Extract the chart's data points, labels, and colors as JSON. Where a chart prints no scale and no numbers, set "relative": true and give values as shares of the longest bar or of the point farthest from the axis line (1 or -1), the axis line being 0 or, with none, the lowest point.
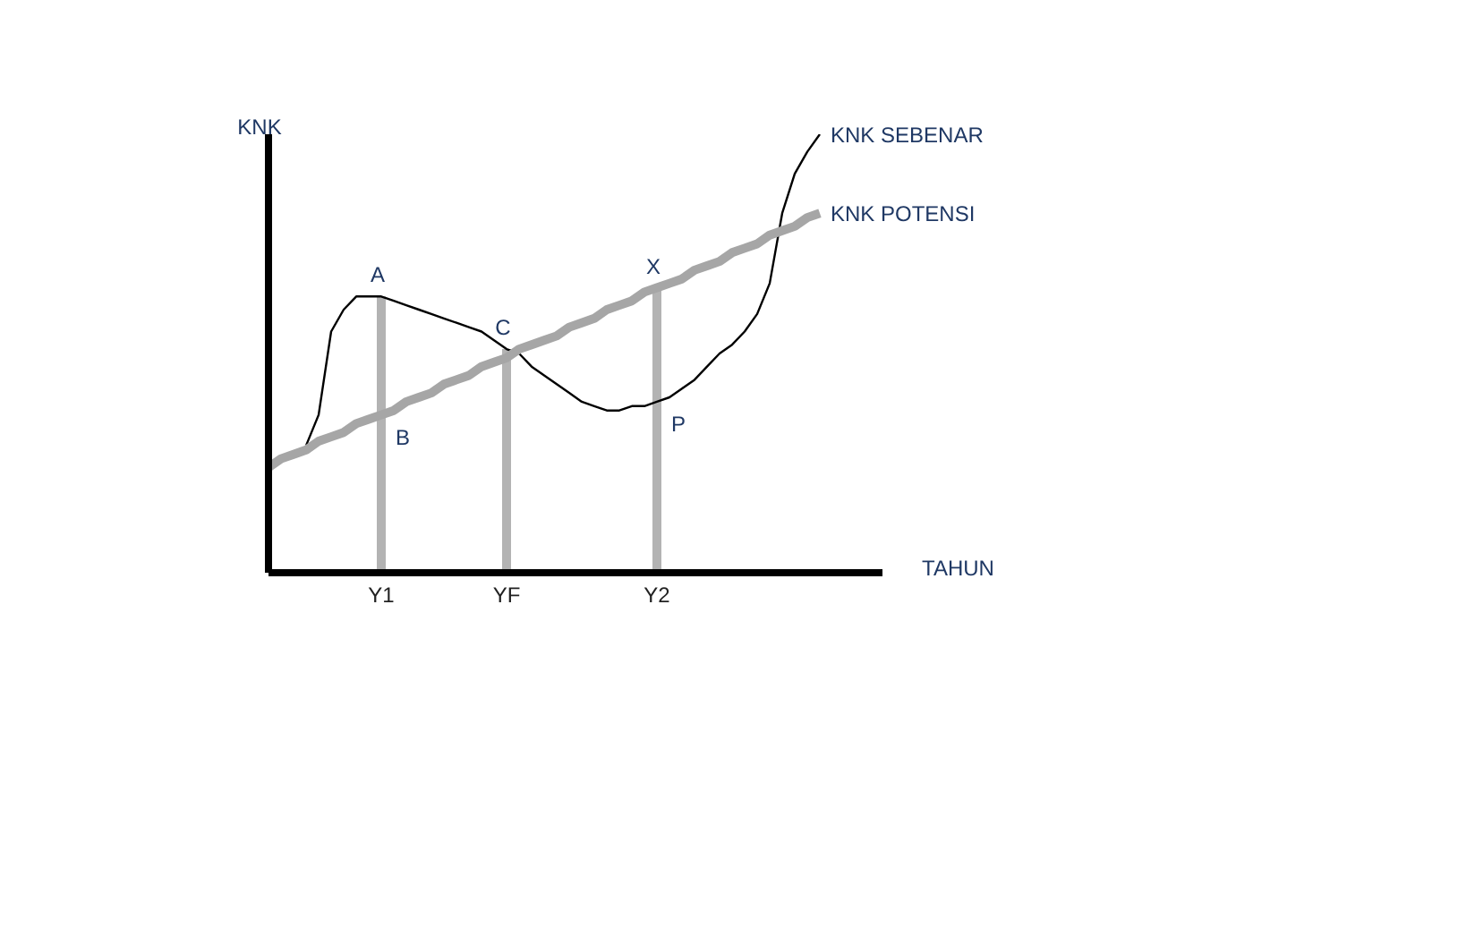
{
  "chart_data": {
    "type": "line",
    "relative": true,
    "xlabel": "TAHUN",
    "ylabel": "KNK",
    "categories": [
      null,
      null,
      null,
      null,
      null,
      null,
      null,
      null,
      null,
      "Y1",
      null,
      null,
      null,
      null,
      null,
      null,
      null,
      null,
      null,
      "YF",
      null,
      null,
      null,
      null,
      null,
      null,
      null,
      null,
      null,
      null,
      null,
      "Y2",
      null,
      null,
      null,
      null,
      null,
      null,
      null,
      null,
      null,
      null,
      null,
      null,
      null
    ],
    "series": [
      {
        "name": "KNK SEBENAR",
        "color": "#000000",
        "values": [
          null,
          null,
          null,
          0.29,
          0.36,
          0.55,
          0.6,
          0.63,
          0.63,
          0.63,
          0.62,
          0.61,
          0.6,
          0.59,
          0.58,
          0.57,
          0.56,
          0.55,
          0.53,
          0.51,
          0.5,
          0.47,
          0.45,
          0.43,
          0.41,
          0.39,
          0.38,
          0.37,
          0.37,
          0.38,
          0.38,
          0.39,
          0.4,
          0.42,
          0.44,
          0.47,
          0.5,
          0.52,
          0.55,
          0.59,
          0.66,
          0.82,
          0.91,
          0.96,
          1
        ]
      },
      {
        "name": "KNK POTENSI",
        "color": "#a6a6a6",
        "values": [
          0.24,
          0.26,
          0.27,
          0.28,
          0.3,
          0.31,
          0.32,
          0.34,
          0.35,
          0.36,
          0.37,
          0.39,
          0.4,
          0.41,
          0.43,
          0.44,
          0.45,
          0.47,
          0.48,
          0.49,
          0.51,
          0.52,
          0.53,
          0.54,
          0.56,
          0.57,
          0.58,
          0.6,
          0.61,
          0.62,
          0.64,
          0.65,
          0.66,
          0.67,
          0.69,
          0.7,
          0.71,
          0.73,
          0.74,
          0.75,
          0.77,
          0.78,
          0.79,
          0.81,
          0.82
        ]
      }
    ],
    "annotations": [
      {
        "text": "A",
        "x": "Y1",
        "y": 0.63
      },
      {
        "text": "B",
        "x": "Y1",
        "y": 0.36
      },
      {
        "text": "C",
        "x": "YF",
        "y": 0.51
      },
      {
        "text": "X",
        "x": "Y2",
        "y": 0.65
      },
      {
        "text": "P",
        "x": "Y2",
        "y": 0.39
      }
    ],
    "ref_lines": [
      {
        "axis": "x",
        "value": "Y1",
        "color": "#b3b3b3"
      },
      {
        "axis": "x",
        "value": "YF",
        "color": "#b3b3b3"
      },
      {
        "axis": "x",
        "value": "Y2",
        "color": "#b3b3b3"
      }
    ],
    "marker": "none",
    "line_style": "solid",
    "legend": false,
    "tick_labels": "x"
  }
}
